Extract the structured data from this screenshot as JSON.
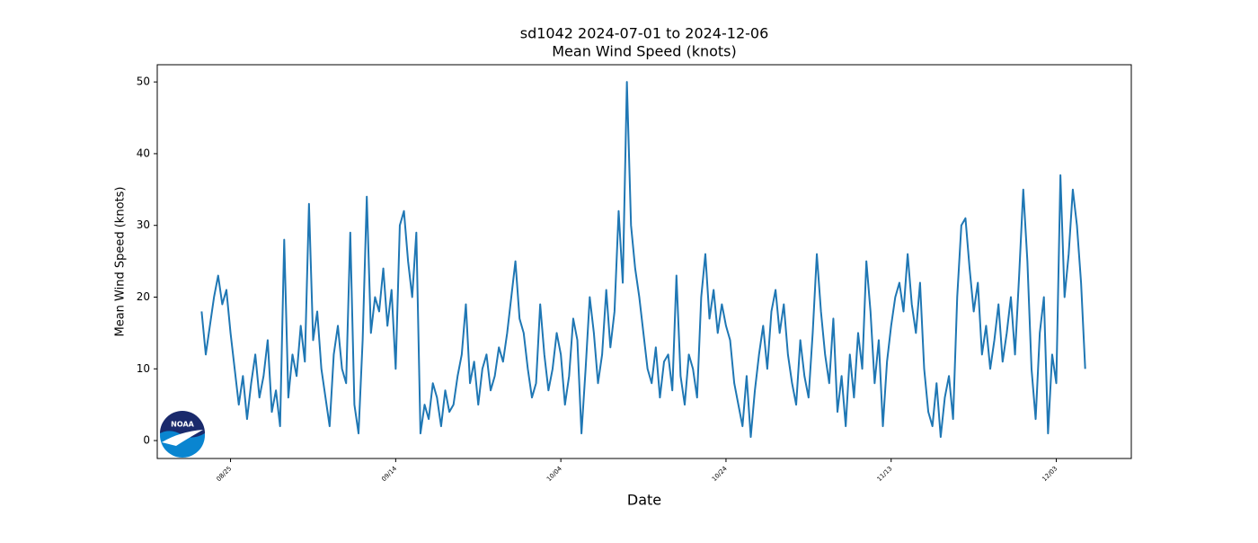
{
  "chart_data": {
    "type": "line",
    "title": "sd1042 2024-07-01 to 2024-12-06",
    "subtitle": "Mean Wind Speed (knots)",
    "xlabel": "Date",
    "ylabel": "Mean Wind Speed (knots)",
    "color": "#1f77b4",
    "xlim": [
      "2024-08-16 03:00",
      "2024-12-12 02:00"
    ],
    "xticks": [
      {
        "value": "2024-08-25 00:00",
        "label": "08/25"
      },
      {
        "value": "2024-09-14 00:00",
        "label": "09/14"
      },
      {
        "value": "2024-10-04 00:00",
        "label": "10/04"
      },
      {
        "value": "2024-10-24 00:00",
        "label": "10/24"
      },
      {
        "value": "2024-11-13 00:00",
        "label": "11/13"
      },
      {
        "value": "2024-12-03 00:00",
        "label": "12/03"
      }
    ],
    "ylim": [
      -2.5,
      52.4
    ],
    "yticks": [
      0,
      10,
      20,
      30,
      40,
      50
    ],
    "x": [
      "2024-08-21 12:00",
      "2024-08-22 00:00",
      "2024-08-22 12:00",
      "2024-08-23 00:00",
      "2024-08-23 12:00",
      "2024-08-24 00:00",
      "2024-08-24 12:00",
      "2024-08-25 00:00",
      "2024-08-25 12:00",
      "2024-08-26 00:00",
      "2024-08-26 12:00",
      "2024-08-27 00:00",
      "2024-08-27 12:00",
      "2024-08-28 00:00",
      "2024-08-28 12:00",
      "2024-08-29 00:00",
      "2024-08-29 12:00",
      "2024-08-30 00:00",
      "2024-08-30 12:00",
      "2024-08-31 00:00",
      "2024-08-31 12:00",
      "2024-09-01 00:00",
      "2024-09-01 12:00",
      "2024-09-02 00:00",
      "2024-09-02 12:00",
      "2024-09-03 00:00",
      "2024-09-03 12:00",
      "2024-09-04 00:00",
      "2024-09-04 12:00",
      "2024-09-05 00:00",
      "2024-09-05 12:00",
      "2024-09-06 00:00",
      "2024-09-06 12:00",
      "2024-09-07 00:00",
      "2024-09-07 12:00",
      "2024-09-08 00:00",
      "2024-09-08 12:00",
      "2024-09-09 00:00",
      "2024-09-09 12:00",
      "2024-09-10 00:00",
      "2024-09-10 12:00",
      "2024-09-11 00:00",
      "2024-09-11 12:00",
      "2024-09-12 00:00",
      "2024-09-12 12:00",
      "2024-09-13 00:00",
      "2024-09-13 12:00",
      "2024-09-14 00:00",
      "2024-09-14 12:00",
      "2024-09-15 00:00",
      "2024-09-15 12:00",
      "2024-09-16 00:00",
      "2024-09-16 12:00",
      "2024-09-17 00:00",
      "2024-09-17 12:00",
      "2024-09-18 00:00",
      "2024-09-18 12:00",
      "2024-09-19 00:00",
      "2024-09-19 12:00",
      "2024-09-20 00:00",
      "2024-09-20 12:00",
      "2024-09-21 00:00",
      "2024-09-21 12:00",
      "2024-09-22 00:00",
      "2024-09-22 12:00",
      "2024-09-23 00:00",
      "2024-09-23 12:00",
      "2024-09-24 00:00",
      "2024-09-24 12:00",
      "2024-09-25 00:00",
      "2024-09-25 12:00",
      "2024-09-26 00:00",
      "2024-09-26 12:00",
      "2024-09-27 00:00",
      "2024-09-27 12:00",
      "2024-09-28 00:00",
      "2024-09-28 12:00",
      "2024-09-29 00:00",
      "2024-09-29 12:00",
      "2024-09-30 00:00",
      "2024-09-30 12:00",
      "2024-10-01 00:00",
      "2024-10-01 12:00",
      "2024-10-02 00:00",
      "2024-10-02 12:00",
      "2024-10-03 00:00",
      "2024-10-03 12:00",
      "2024-10-04 00:00",
      "2024-10-04 12:00",
      "2024-10-05 00:00",
      "2024-10-05 12:00",
      "2024-10-06 00:00",
      "2024-10-06 12:00",
      "2024-10-07 00:00",
      "2024-10-07 12:00",
      "2024-10-08 00:00",
      "2024-10-08 12:00",
      "2024-10-09 00:00",
      "2024-10-09 12:00",
      "2024-10-10 00:00",
      "2024-10-10 12:00",
      "2024-10-11 00:00",
      "2024-10-11 12:00",
      "2024-10-12 00:00",
      "2024-10-12 12:00",
      "2024-10-13 00:00",
      "2024-10-13 12:00",
      "2024-10-14 00:00",
      "2024-10-14 12:00",
      "2024-10-15 00:00",
      "2024-10-15 12:00",
      "2024-10-16 00:00",
      "2024-10-16 12:00",
      "2024-10-17 00:00",
      "2024-10-17 12:00",
      "2024-10-18 00:00",
      "2024-10-18 12:00",
      "2024-10-19 00:00",
      "2024-10-19 12:00",
      "2024-10-20 00:00",
      "2024-10-20 12:00",
      "2024-10-21 00:00",
      "2024-10-21 12:00",
      "2024-10-22 00:00",
      "2024-10-22 12:00",
      "2024-10-23 00:00",
      "2024-10-23 12:00",
      "2024-10-24 00:00",
      "2024-10-24 12:00",
      "2024-10-25 00:00",
      "2024-10-25 12:00",
      "2024-10-26 00:00",
      "2024-10-26 12:00",
      "2024-10-27 00:00",
      "2024-10-27 12:00",
      "2024-10-28 00:00",
      "2024-10-28 12:00",
      "2024-10-29 00:00",
      "2024-10-29 12:00",
      "2024-10-30 00:00",
      "2024-10-30 12:00",
      "2024-10-31 00:00",
      "2024-10-31 12:00",
      "2024-11-01 00:00",
      "2024-11-01 12:00",
      "2024-11-02 00:00",
      "2024-11-02 12:00",
      "2024-11-03 00:00",
      "2024-11-03 12:00",
      "2024-11-04 00:00",
      "2024-11-04 12:00",
      "2024-11-05 00:00",
      "2024-11-05 12:00",
      "2024-11-06 00:00",
      "2024-11-06 12:00",
      "2024-11-07 00:00",
      "2024-11-07 12:00",
      "2024-11-08 00:00",
      "2024-11-08 12:00",
      "2024-11-09 00:00",
      "2024-11-09 12:00",
      "2024-11-10 00:00",
      "2024-11-10 12:00",
      "2024-11-11 00:00",
      "2024-11-11 12:00",
      "2024-11-12 00:00",
      "2024-11-12 12:00",
      "2024-11-13 00:00",
      "2024-11-13 12:00",
      "2024-11-14 00:00",
      "2024-11-14 12:00",
      "2024-11-15 00:00",
      "2024-11-15 12:00",
      "2024-11-16 00:00",
      "2024-11-16 12:00",
      "2024-11-17 00:00",
      "2024-11-17 12:00",
      "2024-11-18 00:00",
      "2024-11-18 12:00",
      "2024-11-19 00:00",
      "2024-11-19 12:00",
      "2024-11-20 00:00",
      "2024-11-20 12:00",
      "2024-11-21 00:00",
      "2024-11-21 12:00",
      "2024-11-22 00:00",
      "2024-11-22 12:00",
      "2024-11-23 00:00",
      "2024-11-23 12:00",
      "2024-11-24 00:00",
      "2024-11-24 12:00",
      "2024-11-25 00:00",
      "2024-11-25 12:00",
      "2024-11-26 00:00",
      "2024-11-26 12:00",
      "2024-11-27 00:00",
      "2024-11-27 12:00",
      "2024-11-28 00:00",
      "2024-11-28 12:00",
      "2024-11-29 00:00",
      "2024-11-29 12:00",
      "2024-11-30 00:00",
      "2024-11-30 12:00",
      "2024-12-01 00:00",
      "2024-12-01 12:00",
      "2024-12-02 00:00",
      "2024-12-02 12:00",
      "2024-12-03 00:00",
      "2024-12-03 12:00",
      "2024-12-04 00:00",
      "2024-12-04 12:00",
      "2024-12-05 00:00",
      "2024-12-05 12:00",
      "2024-12-06 00:00",
      "2024-12-06 12:00"
    ],
    "values": [
      18,
      12,
      16,
      20,
      23,
      19,
      21,
      15,
      10,
      5,
      9,
      3,
      8,
      12,
      6,
      9,
      14,
      4,
      7,
      2,
      28,
      6,
      12,
      9,
      16,
      11,
      33,
      14,
      18,
      10,
      6,
      2,
      12,
      16,
      10,
      8,
      29,
      5,
      1,
      14,
      34,
      15,
      20,
      18,
      24,
      16,
      21,
      10,
      30,
      32,
      25,
      20,
      29,
      1,
      5,
      3,
      8,
      6,
      2,
      7,
      4,
      5,
      9,
      12,
      19,
      8,
      11,
      5,
      10,
      12,
      7,
      9,
      13,
      11,
      15,
      20,
      25,
      17,
      15,
      10,
      6,
      8,
      19,
      12,
      7,
      10,
      15,
      12,
      5,
      9,
      17,
      14,
      1,
      10,
      20,
      15,
      8,
      12,
      21,
      13,
      18,
      32,
      22,
      50,
      30,
      24,
      20,
      15,
      10,
      8,
      13,
      6,
      11,
      12,
      7,
      23,
      9,
      5,
      12,
      10,
      6,
      20,
      26,
      17,
      21,
      15,
      19,
      16,
      14,
      8,
      5,
      2,
      9,
      0.5,
      7,
      12,
      16,
      10,
      18,
      21,
      15,
      19,
      12,
      8,
      5,
      14,
      9,
      6,
      15,
      26,
      18,
      12,
      8,
      17,
      4,
      9,
      2,
      12,
      6,
      15,
      10,
      25,
      18,
      8,
      14,
      2,
      11,
      16,
      20,
      22,
      18,
      26,
      19,
      15,
      22,
      10,
      4,
      2,
      8,
      0.5,
      6,
      9,
      3,
      20,
      30,
      31,
      24,
      18,
      22,
      12,
      16,
      10,
      14,
      19,
      11,
      15,
      20,
      12,
      23,
      35,
      25,
      10,
      3,
      15,
      20,
      1,
      12,
      8,
      37,
      20,
      26,
      35,
      30,
      22,
      10
    ]
  },
  "logo": {
    "text": "NOAA"
  }
}
